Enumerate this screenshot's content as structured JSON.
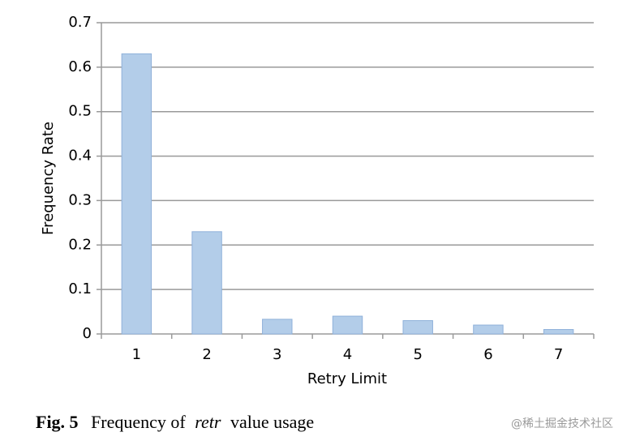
{
  "chart_data": {
    "type": "bar",
    "x_label": "Retry Limit",
    "y_label": "Frequency Rate",
    "categories": [
      "1",
      "2",
      "3",
      "4",
      "5",
      "6",
      "7"
    ],
    "values": [
      0.63,
      0.23,
      0.033,
      0.04,
      0.03,
      0.02,
      0.01
    ],
    "color": "#b3cde9",
    "ylim": [
      0,
      0.7
    ],
    "yticks": [
      0,
      0.1,
      0.2,
      0.3,
      0.4,
      0.5,
      0.6,
      0.7
    ],
    "grid": true
  },
  "caption": {
    "label": "Fig. 5",
    "text_before": "Frequency of",
    "emphasis": "retr",
    "text_after": "value usage"
  },
  "watermark": "@稀土掘金技术社区"
}
